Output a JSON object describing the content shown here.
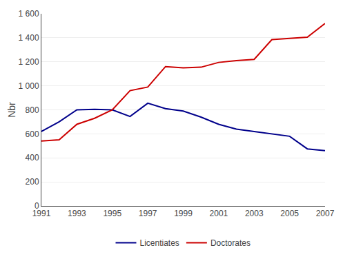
{
  "chart_data": {
    "type": "line",
    "x": [
      1991,
      1992,
      1993,
      1994,
      1995,
      1996,
      1997,
      1998,
      1999,
      2000,
      2001,
      2002,
      2003,
      2004,
      2005,
      2006,
      2007
    ],
    "series": [
      {
        "name": "Licentiates",
        "color": "#00008B",
        "values": [
          620,
          700,
          800,
          805,
          800,
          745,
          855,
          810,
          790,
          740,
          680,
          640,
          620,
          600,
          580,
          475,
          460
        ]
      },
      {
        "name": "Doctorates",
        "color": "#CC0000",
        "values": [
          540,
          550,
          680,
          730,
          800,
          960,
          990,
          1160,
          1150,
          1155,
          1195,
          1210,
          1220,
          1385,
          1395,
          1405,
          1520
        ]
      }
    ],
    "ylabel": "Nbr",
    "xlim": [
      1991,
      2007
    ],
    "xticks": [
      1991,
      1993,
      1995,
      1997,
      1999,
      2001,
      2003,
      2005,
      2007
    ],
    "ylim": [
      0,
      1600
    ],
    "yticks": [
      0,
      200,
      400,
      600,
      800,
      {
        "value": 1000,
        "label": "1 000"
      },
      {
        "value": 1200,
        "label": "1 200"
      },
      {
        "value": 1400,
        "label": "1 400"
      },
      {
        "value": 1600,
        "label": "1 600"
      }
    ],
    "grid": "y",
    "legend": "bottom"
  }
}
